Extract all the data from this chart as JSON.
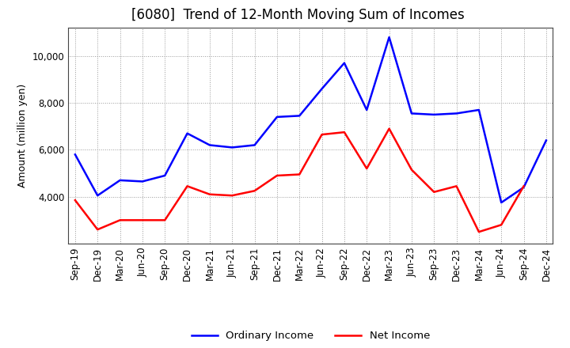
{
  "title": "[6080]  Trend of 12-Month Moving Sum of Incomes",
  "ylabel": "Amount (million yen)",
  "labels": [
    "Sep-19",
    "Dec-19",
    "Mar-20",
    "Jun-20",
    "Sep-20",
    "Dec-20",
    "Mar-21",
    "Jun-21",
    "Sep-21",
    "Dec-21",
    "Mar-22",
    "Jun-22",
    "Sep-22",
    "Dec-22",
    "Mar-23",
    "Jun-23",
    "Sep-23",
    "Dec-23",
    "Mar-24",
    "Jun-24",
    "Sep-24",
    "Dec-24"
  ],
  "ordinary_income": [
    5800,
    4050,
    4700,
    4650,
    4900,
    6700,
    6200,
    6100,
    6200,
    7400,
    7450,
    8600,
    9700,
    7700,
    10800,
    7550,
    7500,
    7550,
    7700,
    3750,
    4400,
    6400
  ],
  "net_income": [
    3850,
    2600,
    3000,
    3000,
    3000,
    4450,
    4100,
    4050,
    4250,
    4900,
    4950,
    6650,
    6750,
    5200,
    6900,
    5150,
    4200,
    4450,
    2500,
    2800,
    4450,
    null
  ],
  "ordinary_color": "#0000ff",
  "net_color": "#ff0000",
  "ylim_min": 2000,
  "ylim_max": 11200,
  "yticks": [
    4000,
    6000,
    8000,
    10000
  ],
  "background_color": "#ffffff",
  "plot_background": "#ffffff",
  "grid_color": "#999999",
  "legend_labels": [
    "Ordinary Income",
    "Net Income"
  ],
  "title_fontsize": 12,
  "axis_fontsize": 8.5,
  "ylabel_fontsize": 9
}
